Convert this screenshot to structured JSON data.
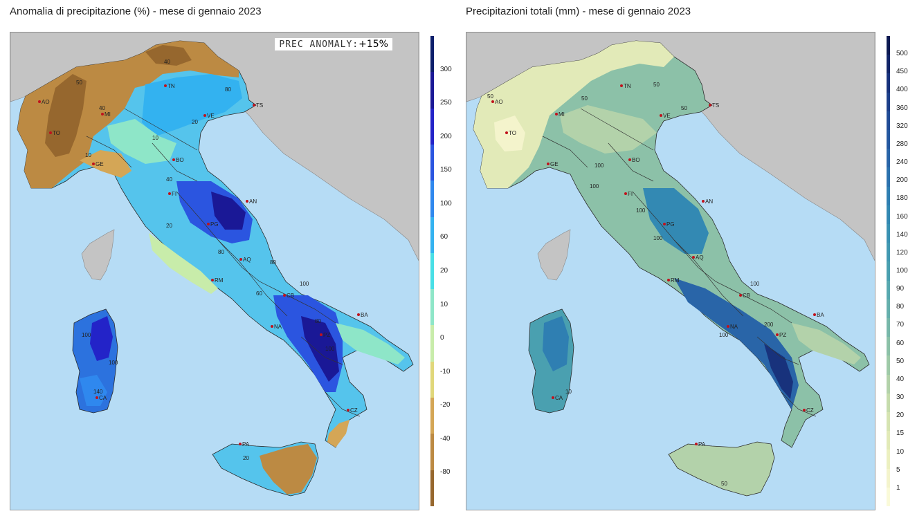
{
  "left_panel": {
    "title": "Anomalia di precipitazione (%) - mese di gennaio 2023",
    "anomaly_box": {
      "label": "PREC ANOMALY:",
      "value": "+15%"
    },
    "colorbar": {
      "labels": [
        "300",
        "250",
        "200",
        "150",
        "100",
        "60",
        "20",
        "10",
        "0",
        "-10",
        "-20",
        "-40",
        "-80"
      ],
      "colors": [
        "#0d1f6b",
        "#1a1896",
        "#2323c8",
        "#2b55e0",
        "#2f88ee",
        "#33b2f0",
        "#48dfe6",
        "#8ee6c8",
        "#c8ecaa",
        "#e0d77a",
        "#d4a656",
        "#bc8a43",
        "#96672e"
      ]
    }
  },
  "right_panel": {
    "title": "Precipitazioni totali (mm) - mese di gennaio 2023",
    "colorbar": {
      "labels": [
        "500",
        "450",
        "400",
        "360",
        "320",
        "280",
        "240",
        "200",
        "180",
        "160",
        "140",
        "120",
        "100",
        "90",
        "80",
        "70",
        "60",
        "50",
        "40",
        "30",
        "20",
        "15",
        "10",
        "5",
        "1"
      ],
      "colors": [
        "#0c1a52",
        "#122568",
        "#18327c",
        "#1d3f8a",
        "#214c96",
        "#2558a0",
        "#2965a8",
        "#2c72ae",
        "#2f7fb2",
        "#3389b3",
        "#3a92b3",
        "#4299b2",
        "#4aa0b0",
        "#58a9b0",
        "#66b0ad",
        "#78b8aa",
        "#8cc1a8",
        "#9fcaa8",
        "#b3d2aa",
        "#c6dcad",
        "#d6e4b2",
        "#e2eab8",
        "#ecf0c0",
        "#f4f4cc",
        "#fafad9"
      ]
    }
  },
  "colors": {
    "sea": "#b6dcf5",
    "foreign_land": "#c4c4c4",
    "city_marker": "#c0121c"
  },
  "cities": [
    {
      "code": "AO"
    },
    {
      "code": "TO"
    },
    {
      "code": "MI"
    },
    {
      "code": "GE"
    },
    {
      "code": "TN"
    },
    {
      "code": "VE"
    },
    {
      "code": "TS"
    },
    {
      "code": "BO"
    },
    {
      "code": "FI"
    },
    {
      "code": "AN"
    },
    {
      "code": "PG"
    },
    {
      "code": "AQ"
    },
    {
      "code": "RM"
    },
    {
      "code": "CB"
    },
    {
      "code": "NA"
    },
    {
      "code": "BA"
    },
    {
      "code": "PZ"
    },
    {
      "code": "CZ"
    },
    {
      "code": "PA"
    },
    {
      "code": "CA"
    }
  ],
  "left_contour_labels": [
    "40",
    "50",
    "80",
    "20",
    "40",
    "10",
    "10",
    "40",
    "20",
    "80",
    "80",
    "100",
    "60",
    "80",
    "100",
    "100",
    "100",
    "140",
    "20"
  ],
  "right_contour_labels": [
    "50",
    "50",
    "50",
    "100",
    "50",
    "100",
    "100",
    "100",
    "100",
    "200",
    "100",
    "10",
    "50"
  ]
}
